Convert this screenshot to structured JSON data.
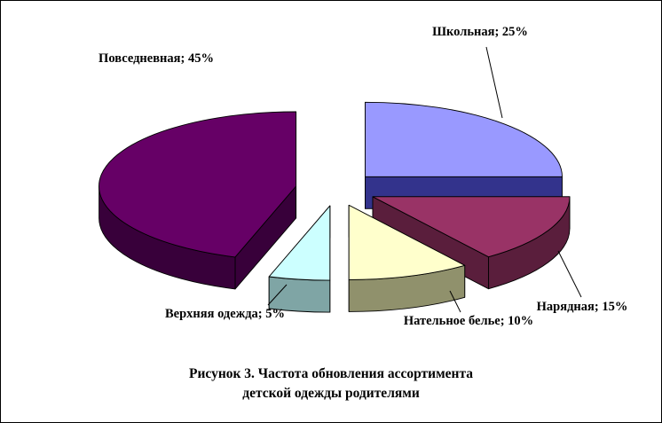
{
  "chart_data": {
    "type": "pie",
    "effect": "3d-exploded-pie",
    "title": "Рисунок 3. Частота обновления ассортимента детской одежды родителями",
    "title_lines": [
      "Рисунок 3. Частота обновления ассортимента",
      "детской одежды родителями"
    ],
    "unit": "%",
    "total": 100,
    "start_angle_deg": -90,
    "direction": "clockwise",
    "legend": "none",
    "background": "#FFFFFF",
    "border_color": "#000000",
    "slices": [
      {
        "label": "Школьная",
        "value": 25,
        "data_label": "Школьная; 25%",
        "color": "#9999FF",
        "side_color": "#33338C"
      },
      {
        "label": "Нарядная",
        "value": 15,
        "data_label": "Нарядная; 15%",
        "color": "#993366",
        "side_color": "#5A1E3C"
      },
      {
        "label": "Нательное белье",
        "value": 10,
        "data_label": "Нательное белье; 10%",
        "color": "#FFFFCC",
        "side_color": "#90916C"
      },
      {
        "label": "Верхняя одежда",
        "value": 5,
        "data_label": "Верхняя одежда; 5%",
        "color": "#CCFFFF",
        "side_color": "#7FA5A5"
      },
      {
        "label": "Повседневная",
        "value": 45,
        "data_label": "Повседневная; 45%",
        "color": "#660066",
        "side_color": "#38003A"
      }
    ]
  }
}
